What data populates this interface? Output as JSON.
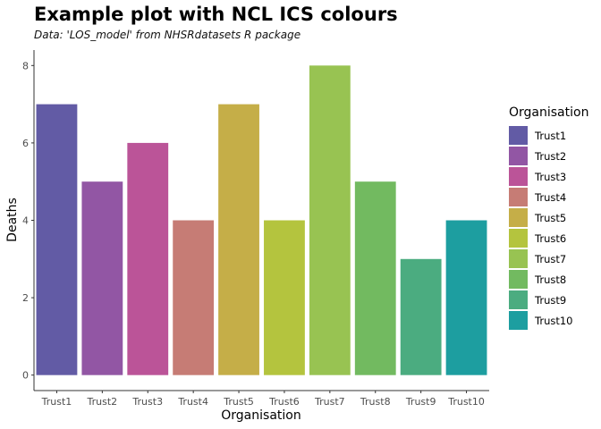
{
  "chart_data": {
    "type": "bar",
    "title": "Example plot with NCL ICS colours",
    "subtitle": "Data: 'LOS_model' from NHSRdatasets R package",
    "xlabel": "Organisation",
    "ylabel": "Deaths",
    "ylim": [
      -0.4,
      8.4
    ],
    "yticks": [
      "0",
      "2",
      "4",
      "6",
      "8"
    ],
    "categories": [
      "Trust1",
      "Trust2",
      "Trust3",
      "Trust4",
      "Trust5",
      "Trust6",
      "Trust7",
      "Trust8",
      "Trust9",
      "Trust10"
    ],
    "values": [
      7,
      5,
      6,
      4,
      7,
      4,
      8,
      5,
      3,
      4
    ],
    "colors": [
      "#625BA5",
      "#9256A4",
      "#BB5498",
      "#C67C75",
      "#C5AE48",
      "#B4C43E",
      "#98C352",
      "#72BA60",
      "#4BAC80",
      "#1D9EA0"
    ],
    "grid": false,
    "legend": {
      "title": "Organisation",
      "position": "right"
    }
  }
}
